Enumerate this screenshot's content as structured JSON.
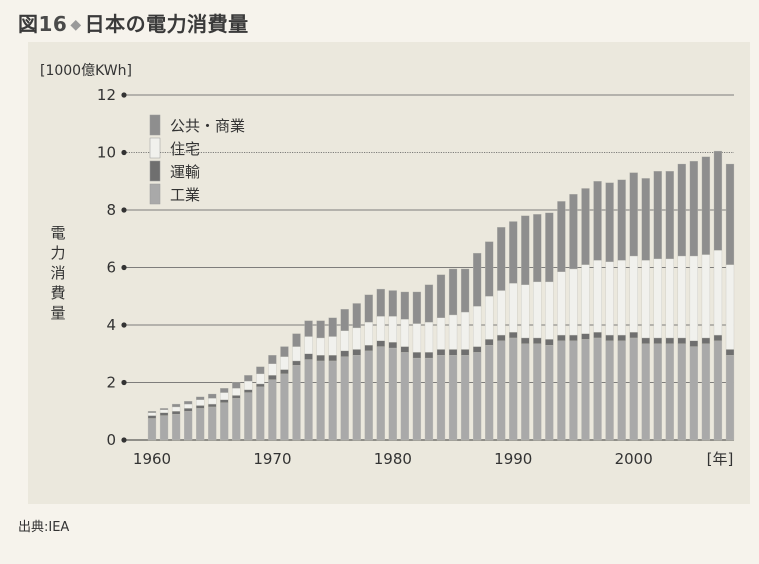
{
  "title": {
    "prefix": "図",
    "number": "16",
    "diamond": "◆",
    "text": "日本の電力消費量"
  },
  "source": "出典:IEA",
  "chart_data": {
    "type": "bar",
    "stacked": true,
    "unit_label": "[1000億KWh]",
    "ylabel": "電力消費量",
    "x_unit_label": "[年]",
    "ylim": [
      0,
      12
    ],
    "yticks": [
      0,
      2,
      4,
      6,
      8,
      10,
      12
    ],
    "xticks": [
      1960,
      1970,
      1980,
      1990,
      2000
    ],
    "grid": true,
    "legend_position": "top-left",
    "colors": {
      "工業": "#a9a9a9",
      "運輸": "#6f6f6f",
      "住宅": "#f1f1ed",
      "公共・商業": "#8e8e8e"
    },
    "years": [
      1960,
      1961,
      1962,
      1963,
      1964,
      1965,
      1966,
      1967,
      1968,
      1969,
      1970,
      1971,
      1972,
      1973,
      1974,
      1975,
      1976,
      1977,
      1978,
      1979,
      1980,
      1981,
      1982,
      1983,
      1984,
      1985,
      1986,
      1987,
      1988,
      1989,
      1990,
      1991,
      1992,
      1993,
      1994,
      1995,
      1996,
      1997,
      1998,
      1999,
      2000,
      2001,
      2002,
      2003,
      2004,
      2005,
      2006,
      2007,
      2008
    ],
    "series": [
      {
        "name": "工業",
        "values": [
          0.75,
          0.85,
          0.9,
          1.0,
          1.1,
          1.15,
          1.3,
          1.45,
          1.65,
          1.85,
          2.1,
          2.3,
          2.6,
          2.8,
          2.75,
          2.75,
          2.9,
          2.95,
          3.1,
          3.25,
          3.2,
          3.05,
          2.85,
          2.85,
          2.95,
          2.95,
          2.95,
          3.05,
          3.3,
          3.45,
          3.55,
          3.35,
          3.35,
          3.3,
          3.45,
          3.45,
          3.5,
          3.55,
          3.45,
          3.45,
          3.55,
          3.35,
          3.35,
          3.35,
          3.35,
          3.25,
          3.35,
          3.45,
          2.95
        ]
      },
      {
        "name": "運輸",
        "values": [
          0.1,
          0.1,
          0.1,
          0.1,
          0.1,
          0.1,
          0.1,
          0.1,
          0.1,
          0.1,
          0.15,
          0.15,
          0.15,
          0.2,
          0.2,
          0.2,
          0.2,
          0.2,
          0.2,
          0.2,
          0.2,
          0.2,
          0.2,
          0.2,
          0.2,
          0.2,
          0.2,
          0.2,
          0.2,
          0.2,
          0.2,
          0.2,
          0.2,
          0.2,
          0.2,
          0.2,
          0.2,
          0.2,
          0.2,
          0.2,
          0.2,
          0.2,
          0.2,
          0.2,
          0.2,
          0.2,
          0.2,
          0.2,
          0.2
        ]
      },
      {
        "name": "住宅",
        "values": [
          0.1,
          0.1,
          0.15,
          0.15,
          0.2,
          0.2,
          0.25,
          0.25,
          0.3,
          0.35,
          0.4,
          0.45,
          0.5,
          0.6,
          0.6,
          0.65,
          0.7,
          0.75,
          0.8,
          0.85,
          0.9,
          0.95,
          1.0,
          1.05,
          1.1,
          1.2,
          1.3,
          1.4,
          1.5,
          1.55,
          1.7,
          1.85,
          1.95,
          2.0,
          2.2,
          2.3,
          2.4,
          2.5,
          2.55,
          2.6,
          2.65,
          2.7,
          2.75,
          2.75,
          2.85,
          2.95,
          2.9,
          2.95,
          2.95
        ]
      },
      {
        "name": "公共・商業",
        "values": [
          0.05,
          0.05,
          0.1,
          0.1,
          0.1,
          0.15,
          0.15,
          0.2,
          0.2,
          0.25,
          0.3,
          0.35,
          0.45,
          0.55,
          0.6,
          0.65,
          0.75,
          0.85,
          0.95,
          0.95,
          0.9,
          0.95,
          1.1,
          1.3,
          1.5,
          1.6,
          1.5,
          1.85,
          1.9,
          2.2,
          2.15,
          2.4,
          2.35,
          2.4,
          2.45,
          2.6,
          2.65,
          2.75,
          2.75,
          2.8,
          2.9,
          2.85,
          3.05,
          3.05,
          3.2,
          3.3,
          3.4,
          3.45,
          3.5
        ]
      }
    ]
  }
}
